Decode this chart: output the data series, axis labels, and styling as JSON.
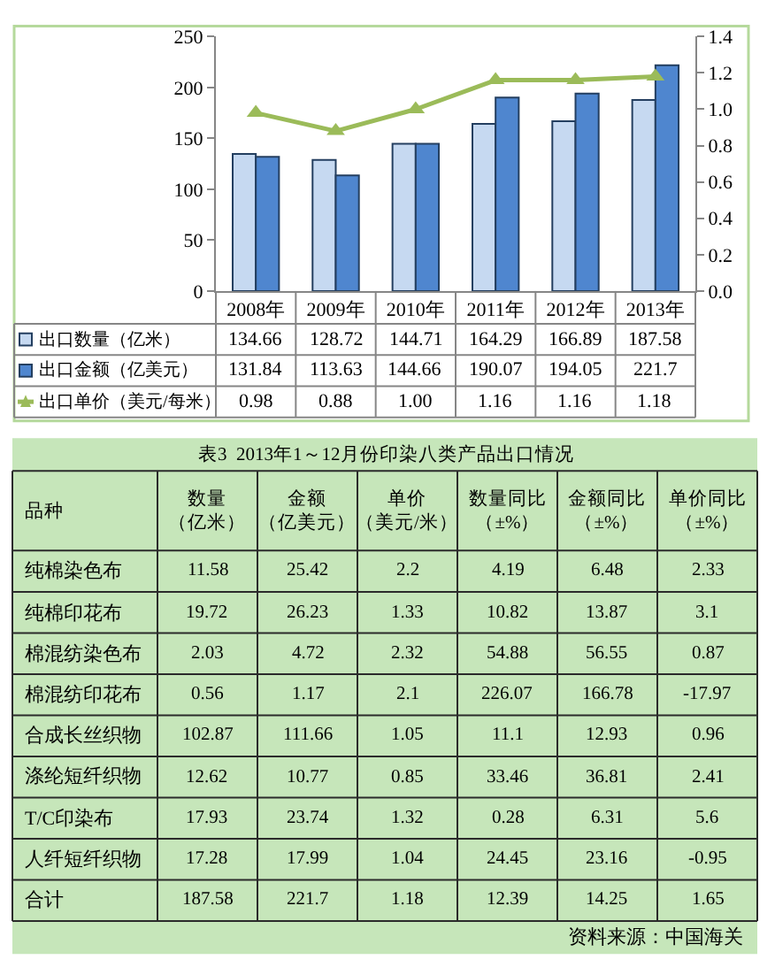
{
  "chart_data": [
    {
      "type": "bar",
      "categories": [
        "2008年",
        "2009年",
        "2010年",
        "2011年",
        "2012年",
        "2013年"
      ],
      "legend": "bottom left",
      "series": [
        {
          "name": "出口数量（亿米）",
          "color": "#c6d9f1",
          "values": [
            134.66,
            128.72,
            144.71,
            164.29,
            166.89,
            187.58
          ],
          "value_labels": [
            "134.66",
            "128.72",
            "144.71",
            "164.29",
            "166.89",
            "187.58"
          ]
        },
        {
          "name": "出口金额（亿美元）",
          "color": "#4f86cf",
          "values": [
            131.84,
            113.63,
            144.66,
            190.07,
            194.05,
            221.7
          ],
          "value_labels": [
            "131.84",
            "113.63",
            "144.66",
            "190.07",
            "194.05",
            "221.7"
          ]
        },
        {
          "name": "出口单价（美元/每米）",
          "type": "line",
          "axis": "y2",
          "color": "#9bbb59",
          "marker": "triangle",
          "values": [
            0.98,
            0.88,
            1.0,
            1.16,
            1.16,
            1.18
          ],
          "value_labels": [
            "0.98",
            "0.88",
            "1.00",
            "1.16",
            "1.16",
            "1.18"
          ]
        }
      ],
      "ylim": [
        0,
        250
      ],
      "yticks": [
        0,
        50,
        100,
        150,
        200,
        250
      ],
      "y2lim": [
        0,
        1.4
      ],
      "y2ticks": [
        {
          "value": 0,
          "label": "0.0"
        },
        0.2,
        0.4,
        0.6,
        0.8,
        {
          "value": 1,
          "label": "1.0"
        },
        1.2,
        1.4
      ]
    },
    {
      "type": "other",
      "title": "表3  2013年1～12月份印染八类产品出口情况",
      "ylabel": "品种",
      "categories": [
        "数量（亿米）",
        "金额（亿美元）",
        "单价（美元/米）",
        "数量同比（±%）",
        "金额同比（±%）",
        "单价同比（±%）"
      ],
      "y_categories": [
        "纯棉染色布",
        "纯棉印花布",
        "棉混纺染色布",
        "棉混纺印花布",
        "合成长丝织物",
        "涤纶短纤织物",
        "T/C印染布",
        "人纤短纤织物",
        "合计"
      ],
      "cell_labels": [
        [
          "11.58",
          "25.42",
          "2.2",
          "4.19",
          "6.48",
          "2.33"
        ],
        [
          "19.72",
          "26.23",
          "1.33",
          "10.82",
          "13.87",
          "3.1"
        ],
        [
          "2.03",
          "4.72",
          "2.32",
          "54.88",
          "56.55",
          "0.87"
        ],
        [
          "0.56",
          "1.17",
          "2.1",
          "226.07",
          "166.78",
          "-17.97"
        ],
        [
          "102.87",
          "111.66",
          "1.05",
          "11.1",
          "12.93",
          "0.96"
        ],
        [
          "12.62",
          "10.77",
          "0.85",
          "33.46",
          "36.81",
          "2.41"
        ],
        [
          "17.93",
          "23.74",
          "1.32",
          "0.28",
          "6.31",
          "5.6"
        ],
        [
          "17.28",
          "17.99",
          "1.04",
          "24.45",
          "23.16",
          "-0.95"
        ],
        [
          "187.58",
          "221.7",
          "1.18",
          "12.39",
          "14.25",
          "1.65"
        ]
      ],
      "annotations": [
        "资料来源：中国海关"
      ]
    }
  ]
}
